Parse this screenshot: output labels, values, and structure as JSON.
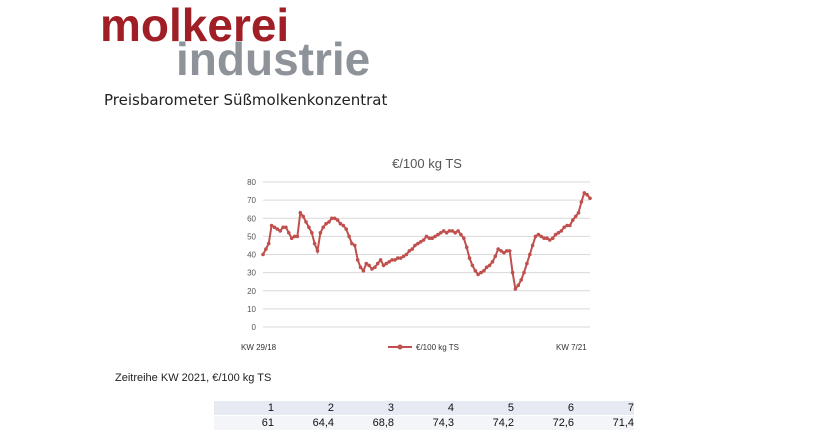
{
  "logo": {
    "line1": "molkerei",
    "line2": "industrie"
  },
  "subtitle": "Preisbarometer Süßmolkenkonzentrat",
  "chart_data": {
    "type": "line",
    "title": "€/100 kg TS",
    "ylim": [
      0,
      80
    ],
    "yticks": [
      "0",
      "10",
      "20",
      "30",
      "40",
      "50",
      "60",
      "70",
      "80"
    ],
    "xtick_labels": {
      "first": "KW 29/18",
      "last": "KW 7/21"
    },
    "grid": true,
    "legend_position": "bottom",
    "series": [
      {
        "name": "€/100 kg TS",
        "color": "#c0504d",
        "values": [
          40,
          43,
          46,
          56,
          55,
          54,
          53,
          55,
          55,
          52,
          49,
          50,
          50,
          63,
          61,
          58,
          55,
          52,
          46,
          42,
          52,
          55,
          57,
          58,
          60,
          60,
          59,
          57,
          56,
          54,
          50,
          46,
          45,
          37,
          33,
          31,
          35,
          34,
          32,
          33,
          35,
          37,
          34,
          35,
          36,
          37,
          37,
          38,
          38,
          39,
          40,
          42,
          43,
          45,
          46,
          47,
          48,
          50,
          49,
          49,
          50,
          51,
          52,
          53,
          52,
          53,
          53,
          52,
          53,
          51,
          49,
          44,
          38,
          34,
          31,
          29,
          30,
          31,
          33,
          34,
          36,
          39,
          43,
          42,
          41,
          42,
          42,
          30,
          21,
          23,
          26,
          30,
          35,
          40,
          45,
          50,
          51,
          50,
          49,
          49,
          48,
          49,
          51,
          52,
          53,
          55,
          56,
          56,
          59,
          61,
          63,
          69,
          74,
          73,
          71
        ]
      }
    ]
  },
  "caption": "Zeitreihe KW 2021, €/100  kg TS",
  "table": {
    "weeks": [
      "1",
      "2",
      "3",
      "4",
      "5",
      "6",
      "7"
    ],
    "values": [
      "61",
      "64,4",
      "68,8",
      "74,3",
      "74,2",
      "72,6",
      "71,4"
    ]
  }
}
